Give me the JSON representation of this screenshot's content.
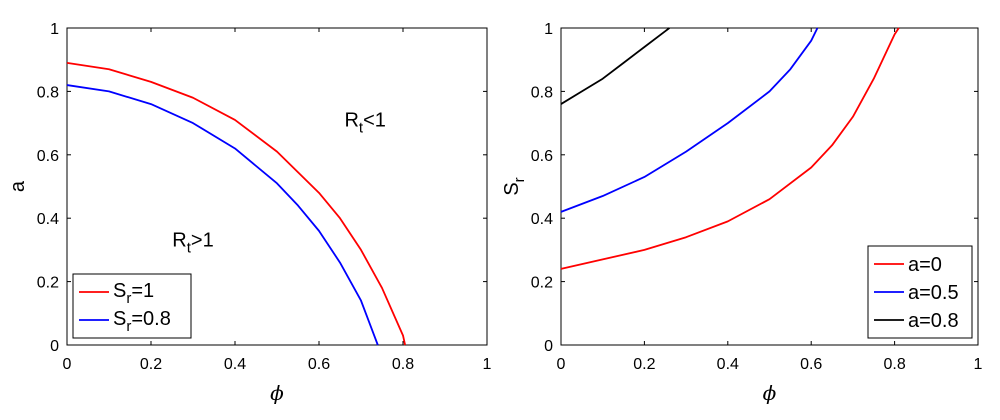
{
  "chart_data": [
    {
      "type": "line",
      "xlabel": "ϕ",
      "ylabel": "a",
      "xlim": [
        0,
        1
      ],
      "ylim": [
        0,
        1
      ],
      "xticks": [
        "0",
        "0.2",
        "0.4",
        "0.6",
        "0.8",
        "1"
      ],
      "yticks": [
        "0",
        "0.2",
        "0.4",
        "0.6",
        "0.8",
        "1"
      ],
      "legend_position": "bottom-left",
      "annotations": [
        {
          "base": "R",
          "sub": "t",
          "tail": "<1",
          "x": 0.71,
          "y": 0.69
        },
        {
          "base": "R",
          "sub": "t",
          "tail": ">1",
          "x": 0.3,
          "y": 0.31
        }
      ],
      "series": [
        {
          "legend_base": "S",
          "legend_sub": "r",
          "legend_tail": "=1",
          "color": "#ff0000",
          "x": [
            0,
            0.1,
            0.2,
            0.3,
            0.4,
            0.5,
            0.6,
            0.65,
            0.7,
            0.75,
            0.78,
            0.8,
            0.805
          ],
          "y": [
            0.89,
            0.87,
            0.83,
            0.78,
            0.71,
            0.61,
            0.48,
            0.4,
            0.3,
            0.18,
            0.09,
            0.03,
            0
          ]
        },
        {
          "legend_base": "S",
          "legend_sub": "r",
          "legend_tail": "=0.8",
          "color": "#0000ff",
          "x": [
            0,
            0.1,
            0.2,
            0.3,
            0.4,
            0.5,
            0.55,
            0.6,
            0.65,
            0.7,
            0.72,
            0.74
          ],
          "y": [
            0.82,
            0.8,
            0.76,
            0.7,
            0.62,
            0.51,
            0.44,
            0.36,
            0.26,
            0.14,
            0.07,
            0
          ]
        }
      ]
    },
    {
      "type": "line",
      "xlabel": "ϕ",
      "ylabel_base": "S",
      "ylabel_sub": "r",
      "xlim": [
        0,
        1
      ],
      "ylim": [
        0,
        1
      ],
      "xticks": [
        "0",
        "0.2",
        "0.4",
        "0.6",
        "0.8",
        "1"
      ],
      "yticks": [
        "0",
        "0.2",
        "0.4",
        "0.6",
        "0.8",
        "1"
      ],
      "legend_position": "bottom-right",
      "series": [
        {
          "name": "a=0",
          "color": "#ff0000",
          "x": [
            0,
            0.1,
            0.2,
            0.3,
            0.4,
            0.5,
            0.6,
            0.65,
            0.7,
            0.75,
            0.8,
            0.81
          ],
          "y": [
            0.24,
            0.27,
            0.3,
            0.34,
            0.39,
            0.46,
            0.56,
            0.63,
            0.72,
            0.84,
            0.98,
            1.0
          ]
        },
        {
          "name": "a=0.5",
          "color": "#0000ff",
          "x": [
            0,
            0.1,
            0.2,
            0.3,
            0.4,
            0.5,
            0.55,
            0.6,
            0.615
          ],
          "y": [
            0.42,
            0.47,
            0.53,
            0.61,
            0.7,
            0.8,
            0.87,
            0.96,
            1.0
          ]
        },
        {
          "name": "a=0.8",
          "color": "#000000",
          "x": [
            0,
            0.05,
            0.1,
            0.15,
            0.2,
            0.25,
            0.26
          ],
          "y": [
            0.76,
            0.8,
            0.84,
            0.89,
            0.94,
            0.99,
            1.0
          ]
        }
      ]
    }
  ]
}
